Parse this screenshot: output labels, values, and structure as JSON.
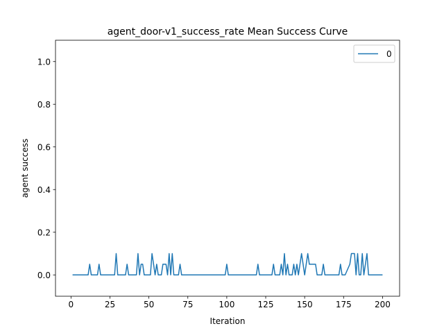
{
  "chart_data": {
    "type": "line",
    "title": "agent_door-v1_success_rate Mean Success Curve",
    "xlabel": "Iteration",
    "ylabel": "agent success",
    "xlim": [
      -9.95,
      210.95
    ],
    "ylim": [
      -0.1,
      1.1
    ],
    "xticks": [
      0,
      25,
      50,
      75,
      100,
      125,
      150,
      175,
      200
    ],
    "yticks": [
      0.0,
      0.2,
      0.4,
      0.6,
      0.8,
      1.0
    ],
    "xtick_labels": [
      "0",
      "25",
      "50",
      "75",
      "100",
      "125",
      "150",
      "175",
      "200"
    ],
    "ytick_labels": [
      "0.0",
      "0.2",
      "0.4",
      "0.6",
      "0.8",
      "1.0"
    ],
    "grid": false,
    "legend_position": "top-right",
    "series": [
      {
        "name": "0",
        "color": "#1f77b4",
        "x": [
          1,
          11,
          12,
          13,
          17,
          18,
          19,
          28,
          29,
          30,
          35,
          36,
          37,
          42,
          43,
          44,
          45,
          46,
          47,
          51,
          52,
          53,
          54,
          55,
          56,
          58,
          59,
          60,
          61,
          62,
          63,
          64,
          65,
          66,
          69,
          70,
          71,
          99,
          100,
          101,
          119,
          120,
          121,
          129,
          130,
          131,
          134,
          135,
          136,
          137,
          138,
          139,
          140,
          142,
          143,
          144,
          145,
          146,
          148,
          149,
          150,
          152,
          153,
          154,
          155,
          156,
          157,
          158,
          159,
          161,
          162,
          163,
          172,
          173,
          174,
          176,
          179,
          180,
          181,
          182,
          183,
          184,
          185,
          186,
          187,
          188,
          189,
          190,
          191,
          192,
          200
        ],
        "y": [
          0,
          0,
          0.05,
          0,
          0,
          0.05,
          0,
          0,
          0.1,
          0,
          0,
          0.05,
          0,
          0,
          0.1,
          0,
          0.05,
          0.05,
          0,
          0,
          0.1,
          0.05,
          0,
          0.05,
          0,
          0,
          0.05,
          0.05,
          0.05,
          0,
          0.1,
          0,
          0.1,
          0,
          0,
          0.05,
          0,
          0,
          0.05,
          0,
          0,
          0.05,
          0,
          0,
          0.05,
          0,
          0,
          0.05,
          0,
          0.1,
          0,
          0.05,
          0,
          0,
          0.05,
          0,
          0.05,
          0,
          0.1,
          0.05,
          0,
          0.1,
          0.05,
          0.05,
          0.05,
          0.05,
          0.05,
          0,
          0,
          0,
          0.05,
          0,
          0,
          0.05,
          0,
          0,
          0.05,
          0.1,
          0.1,
          0.1,
          0,
          0.1,
          0,
          0,
          0.1,
          0,
          0.05,
          0.1,
          0,
          0,
          0
        ]
      }
    ]
  }
}
